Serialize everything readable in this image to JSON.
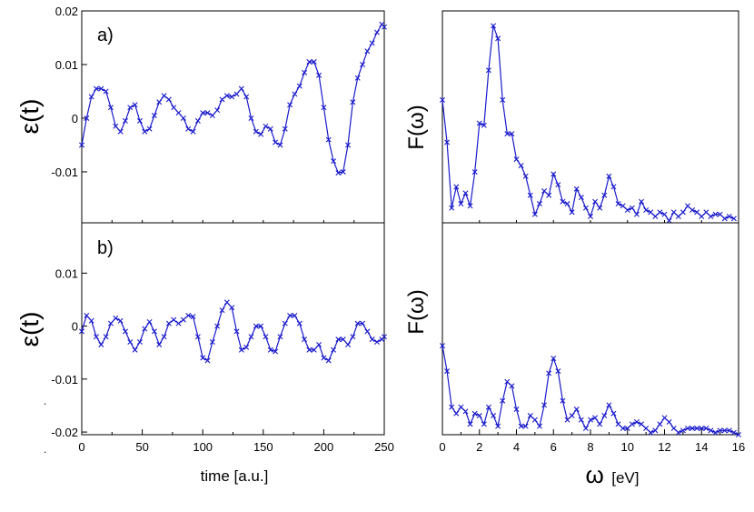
{
  "figure": {
    "x_label_left": "time [a.u.]",
    "x_label_right_symbol": "ω",
    "x_label_right_unit": "[eV]",
    "series_color": "#1a1acc",
    "stray_marks": [
      ".",
      "."
    ]
  },
  "chart_data": [
    {
      "id": "panel-a",
      "type": "line",
      "panel_label": "a)",
      "ylabel": "ε(t)",
      "xlim": [
        0,
        250
      ],
      "ylim": [
        -0.0195,
        0.02
      ],
      "xticks": [],
      "yticks": [
        -0.01,
        0,
        0.01,
        0.02
      ],
      "ytick_labels": [
        "-0.01",
        "0",
        "0.01",
        "0.02"
      ],
      "xminor": [
        0,
        25,
        50,
        75,
        100,
        125,
        150,
        175,
        200,
        225,
        250
      ],
      "marker": "x",
      "x": [
        0,
        4,
        8,
        12,
        16,
        20,
        24,
        28,
        32,
        36,
        40,
        44,
        48,
        52,
        56,
        60,
        64,
        68,
        72,
        76,
        80,
        84,
        88,
        92,
        96,
        100,
        104,
        108,
        112,
        116,
        120,
        124,
        128,
        132,
        136,
        140,
        144,
        148,
        152,
        156,
        160,
        164,
        168,
        172,
        176,
        180,
        184,
        188,
        192,
        196,
        200,
        204,
        208,
        212,
        216,
        220,
        224,
        228,
        232,
        236,
        240,
        244,
        248,
        250
      ],
      "y": [
        -0.005,
        0.0,
        0.004,
        0.0055,
        0.0055,
        0.005,
        0.002,
        -0.0015,
        -0.0025,
        -0.0005,
        0.002,
        0.0025,
        -0.0005,
        -0.0025,
        -0.002,
        0.0005,
        0.003,
        0.0042,
        0.0035,
        0.002,
        0.001,
        0.0,
        -0.002,
        -0.0025,
        -0.0005,
        0.001,
        0.001,
        0.0005,
        0.0015,
        0.0035,
        0.0042,
        0.004,
        0.0045,
        0.0055,
        0.004,
        0.0,
        -0.0025,
        -0.003,
        -0.0015,
        -0.002,
        -0.0045,
        -0.005,
        -0.002,
        0.0025,
        0.0045,
        0.006,
        0.0085,
        0.0105,
        0.0105,
        0.008,
        0.002,
        -0.004,
        -0.008,
        -0.0102,
        -0.01,
        -0.005,
        0.003,
        0.0075,
        0.01,
        0.0125,
        0.014,
        0.016,
        0.0175,
        0.017
      ]
    },
    {
      "id": "panel-b",
      "type": "line",
      "panel_label": "b)",
      "ylabel": "ε(t)",
      "xlim": [
        0,
        250
      ],
      "ylim": [
        -0.0205,
        0.0195
      ],
      "xticks": [
        0,
        50,
        100,
        150,
        200,
        250
      ],
      "xtick_labels": [
        "0",
        "50",
        "100",
        "150",
        "200",
        "250"
      ],
      "yticks": [
        -0.02,
        -0.01,
        0,
        0.01
      ],
      "ytick_labels": [
        "-0.02",
        "-0.01",
        "0",
        "0.01"
      ],
      "xminor": [
        25,
        75,
        125,
        175,
        225
      ],
      "marker": "x",
      "x": [
        0,
        4,
        8,
        12,
        16,
        20,
        24,
        28,
        32,
        36,
        40,
        44,
        48,
        52,
        56,
        60,
        64,
        68,
        72,
        76,
        80,
        84,
        88,
        92,
        96,
        100,
        104,
        108,
        112,
        116,
        120,
        124,
        128,
        132,
        136,
        140,
        144,
        148,
        152,
        156,
        160,
        164,
        168,
        172,
        176,
        180,
        184,
        188,
        192,
        196,
        200,
        204,
        208,
        212,
        216,
        220,
        224,
        228,
        232,
        236,
        240,
        244,
        248,
        250
      ],
      "y": [
        -0.001,
        0.002,
        0.001,
        -0.002,
        -0.0035,
        -0.002,
        0.0005,
        0.0015,
        0.001,
        -0.001,
        -0.003,
        -0.0045,
        -0.003,
        -0.0005,
        0.0008,
        -0.001,
        -0.0035,
        -0.002,
        0.0005,
        0.0012,
        0.0005,
        0.0012,
        0.002,
        0.0018,
        -0.002,
        -0.006,
        -0.0065,
        -0.003,
        0.0,
        0.003,
        0.0045,
        0.0035,
        -0.001,
        -0.0045,
        -0.004,
        -0.002,
        0.0,
        0.0,
        -0.002,
        -0.0045,
        -0.0048,
        -0.002,
        0.0005,
        0.002,
        0.002,
        0.0005,
        -0.0025,
        -0.0045,
        -0.0045,
        -0.0035,
        -0.006,
        -0.0065,
        -0.0045,
        -0.0025,
        -0.0025,
        -0.0035,
        -0.002,
        0.0005,
        0.0005,
        -0.001,
        -0.0025,
        -0.003,
        -0.0025,
        -0.002
      ]
    },
    {
      "id": "panel-c",
      "type": "line",
      "panel_label": "",
      "ylabel": "F(ω)",
      "xlim": [
        0,
        16
      ],
      "ylim": [
        0,
        1.0
      ],
      "xticks": [],
      "yticks": [],
      "xminor": [
        0,
        2,
        4,
        6,
        8,
        10,
        12,
        14,
        16
      ],
      "marker": "x",
      "x": [
        0.0,
        0.25,
        0.5,
        0.75,
        1.0,
        1.25,
        1.5,
        1.75,
        2.0,
        2.25,
        2.5,
        2.75,
        3.0,
        3.25,
        3.5,
        3.75,
        4.0,
        4.25,
        4.5,
        4.75,
        5.0,
        5.25,
        5.5,
        5.75,
        6.0,
        6.25,
        6.5,
        6.75,
        7.0,
        7.25,
        7.5,
        7.75,
        8.0,
        8.25,
        8.5,
        8.75,
        9.0,
        9.25,
        9.5,
        9.75,
        10.0,
        10.25,
        10.5,
        10.75,
        11.0,
        11.25,
        11.5,
        11.75,
        12.0,
        12.25,
        12.5,
        12.75,
        13.0,
        13.25,
        13.5,
        13.75,
        14.0,
        14.25,
        14.5,
        14.75,
        15.0,
        15.25,
        15.5,
        15.75
      ],
      "y": [
        0.58,
        0.38,
        0.07,
        0.17,
        0.09,
        0.14,
        0.08,
        0.24,
        0.47,
        0.46,
        0.72,
        0.93,
        0.87,
        0.58,
        0.42,
        0.42,
        0.3,
        0.27,
        0.22,
        0.13,
        0.04,
        0.09,
        0.15,
        0.13,
        0.23,
        0.18,
        0.1,
        0.09,
        0.05,
        0.16,
        0.12,
        0.07,
        0.03,
        0.1,
        0.07,
        0.13,
        0.22,
        0.17,
        0.09,
        0.08,
        0.06,
        0.07,
        0.04,
        0.1,
        0.06,
        0.05,
        0.03,
        0.05,
        0.04,
        0.01,
        0.05,
        0.03,
        0.05,
        0.08,
        0.06,
        0.05,
        0.03,
        0.05,
        0.03,
        0.04,
        0.04,
        0.02,
        0.03,
        0.02
      ]
    },
    {
      "id": "panel-d",
      "type": "line",
      "panel_label": "",
      "ylabel": "F(ω)",
      "xlim": [
        0,
        16
      ],
      "ylim": [
        0,
        1.0
      ],
      "xticks": [
        0,
        2,
        4,
        6,
        8,
        10,
        12,
        14,
        16
      ],
      "xtick_labels": [
        "0",
        "2",
        "4",
        "6",
        "8",
        "10",
        "12",
        "14",
        "16"
      ],
      "yticks": [],
      "xminor": [
        1,
        3,
        5,
        7,
        9,
        11,
        13,
        15
      ],
      "marker": "x",
      "x": [
        0.0,
        0.25,
        0.5,
        0.75,
        1.0,
        1.25,
        1.5,
        1.75,
        2.0,
        2.25,
        2.5,
        2.75,
        3.0,
        3.25,
        3.5,
        3.75,
        4.0,
        4.25,
        4.5,
        4.75,
        5.0,
        5.25,
        5.5,
        5.75,
        6.0,
        6.25,
        6.5,
        6.75,
        7.0,
        7.25,
        7.5,
        7.75,
        8.0,
        8.25,
        8.5,
        8.75,
        9.0,
        9.25,
        9.5,
        9.75,
        10.0,
        10.25,
        10.5,
        10.75,
        11.0,
        11.25,
        11.5,
        11.75,
        12.0,
        12.25,
        12.5,
        12.75,
        13.0,
        13.25,
        13.5,
        13.75,
        14.0,
        14.25,
        14.5,
        14.75,
        15.0,
        15.25,
        15.5,
        15.75,
        16.0
      ],
      "y": [
        0.42,
        0.3,
        0.13,
        0.1,
        0.13,
        0.11,
        0.05,
        0.1,
        0.09,
        0.05,
        0.13,
        0.09,
        0.04,
        0.16,
        0.25,
        0.23,
        0.12,
        0.04,
        0.04,
        0.09,
        0.07,
        0.04,
        0.14,
        0.29,
        0.36,
        0.3,
        0.16,
        0.07,
        0.09,
        0.12,
        0.07,
        0.03,
        0.07,
        0.08,
        0.05,
        0.09,
        0.14,
        0.1,
        0.05,
        0.03,
        0.03,
        0.05,
        0.06,
        0.05,
        0.03,
        0.01,
        0.02,
        0.05,
        0.08,
        0.06,
        0.03,
        0.01,
        0.02,
        0.03,
        0.03,
        0.03,
        0.03,
        0.03,
        0.02,
        0.01,
        0.02,
        0.02,
        0.02,
        0.01,
        0.0
      ]
    }
  ]
}
